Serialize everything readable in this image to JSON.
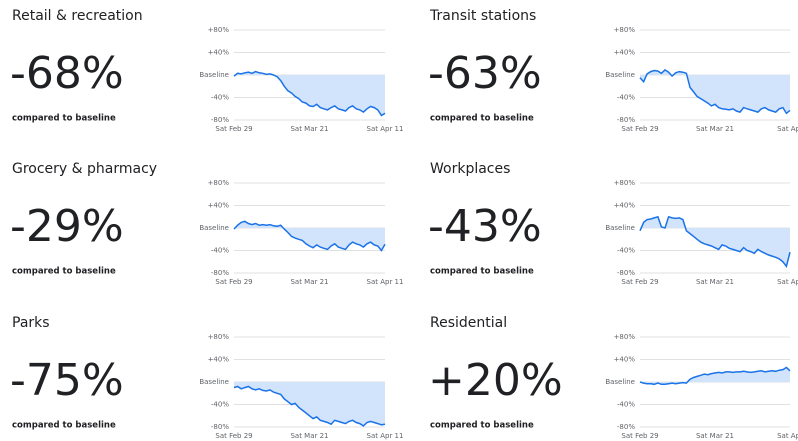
{
  "chart_data": [
    {
      "type": "line",
      "title": "Retail & recreation",
      "summary": "-68%",
      "subtitle": "compared to baseline",
      "color": "#1a73e8",
      "fill_color": "#d2e3fc",
      "grid": true,
      "categories": [
        "Sat Feb 29",
        null,
        null,
        null,
        null,
        null,
        null,
        null,
        null,
        null,
        null,
        null,
        null,
        null,
        null,
        null,
        null,
        null,
        null,
        null,
        null,
        "Sat Mar 21",
        null,
        null,
        null,
        null,
        null,
        null,
        null,
        null,
        null,
        null,
        null,
        null,
        null,
        null,
        null,
        null,
        null,
        null,
        null,
        null,
        "Sat Apr 11"
      ],
      "values": [
        -2,
        3,
        2,
        4,
        5,
        3,
        6,
        4,
        3,
        1,
        2,
        0,
        -3,
        -10,
        -20,
        -28,
        -32,
        -38,
        -42,
        -48,
        -50,
        -55,
        -56,
        -52,
        -58,
        -60,
        -62,
        -58,
        -55,
        -60,
        -62,
        -64,
        -58,
        -55,
        -60,
        -62,
        -66,
        -60,
        -56,
        -58,
        -62,
        -72,
        -68
      ],
      "ylim": [
        -80,
        80
      ],
      "yticks": [
        {
          "value": 80,
          "label": "+80%"
        },
        {
          "value": 40,
          "label": "+40%"
        },
        {
          "value": 0,
          "label": "Baseline"
        },
        {
          "value": -40,
          "label": "-40%"
        },
        {
          "value": -80,
          "label": "-80%"
        }
      ]
    },
    {
      "type": "line",
      "title": "Transit stations",
      "summary": "-63%",
      "subtitle": "compared to baseline",
      "color": "#1a73e8",
      "fill_color": "#d2e3fc",
      "grid": true,
      "categories": [
        "Sat Feb 29",
        null,
        null,
        null,
        null,
        null,
        null,
        null,
        null,
        null,
        null,
        null,
        null,
        null,
        null,
        null,
        null,
        null,
        null,
        null,
        null,
        "Sat Mar 21",
        null,
        null,
        null,
        null,
        null,
        null,
        null,
        null,
        null,
        null,
        null,
        null,
        null,
        null,
        null,
        null,
        null,
        null,
        null,
        null,
        "Sat Apr"
      ],
      "values": [
        -5,
        -12,
        2,
        6,
        8,
        7,
        3,
        9,
        5,
        -2,
        4,
        6,
        5,
        3,
        -22,
        -30,
        -38,
        -42,
        -46,
        -50,
        -55,
        -52,
        -58,
        -60,
        -61,
        -62,
        -60,
        -64,
        -66,
        -58,
        -60,
        -62,
        -64,
        -66,
        -60,
        -58,
        -62,
        -64,
        -66,
        -60,
        -58,
        -68,
        -63
      ],
      "ylim": [
        -80,
        80
      ],
      "yticks": [
        {
          "value": 80,
          "label": "+80%"
        },
        {
          "value": 40,
          "label": "+40%"
        },
        {
          "value": 0,
          "label": "Baseline"
        },
        {
          "value": -40,
          "label": "-40%"
        },
        {
          "value": -80,
          "label": "-80%"
        }
      ]
    },
    {
      "type": "line",
      "title": "Grocery & pharmacy",
      "summary": "-29%",
      "subtitle": "compared to baseline",
      "color": "#1a73e8",
      "fill_color": "#d2e3fc",
      "grid": true,
      "categories": [
        "Sat Feb 29",
        null,
        null,
        null,
        null,
        null,
        null,
        null,
        null,
        null,
        null,
        null,
        null,
        null,
        null,
        null,
        null,
        null,
        null,
        null,
        null,
        "Sat Mar 21",
        null,
        null,
        null,
        null,
        null,
        null,
        null,
        null,
        null,
        null,
        null,
        null,
        null,
        null,
        null,
        null,
        null,
        null,
        null,
        null,
        "Sat Apr 11"
      ],
      "values": [
        -2,
        5,
        10,
        12,
        8,
        6,
        8,
        5,
        6,
        5,
        6,
        4,
        3,
        5,
        -2,
        -8,
        -15,
        -18,
        -20,
        -22,
        -28,
        -32,
        -35,
        -30,
        -34,
        -36,
        -38,
        -32,
        -28,
        -34,
        -36,
        -38,
        -30,
        -25,
        -28,
        -30,
        -34,
        -28,
        -25,
        -30,
        -32,
        -40,
        -29
      ],
      "ylim": [
        -80,
        80
      ],
      "yticks": [
        {
          "value": 80,
          "label": "+80%"
        },
        {
          "value": 40,
          "label": "+40%"
        },
        {
          "value": 0,
          "label": "Baseline"
        },
        {
          "value": -40,
          "label": "-40%"
        },
        {
          "value": -80,
          "label": "-80%"
        }
      ]
    },
    {
      "type": "line",
      "title": "Workplaces",
      "summary": "-43%",
      "subtitle": "compared to baseline",
      "color": "#1a73e8",
      "fill_color": "#d2e3fc",
      "grid": true,
      "categories": [
        "Sat Feb 29",
        null,
        null,
        null,
        null,
        null,
        null,
        null,
        null,
        null,
        null,
        null,
        null,
        null,
        null,
        null,
        null,
        null,
        null,
        null,
        null,
        "Sat Mar 21",
        null,
        null,
        null,
        null,
        null,
        null,
        null,
        null,
        null,
        null,
        null,
        null,
        null,
        null,
        null,
        null,
        null,
        null,
        null,
        null,
        "Sat Apr"
      ],
      "values": [
        -5,
        10,
        15,
        16,
        18,
        20,
        2,
        0,
        20,
        18,
        17,
        18,
        15,
        -5,
        -10,
        -15,
        -20,
        -25,
        -28,
        -30,
        -32,
        -35,
        -38,
        -30,
        -32,
        -36,
        -38,
        -40,
        -42,
        -35,
        -40,
        -42,
        -45,
        -38,
        -42,
        -45,
        -48,
        -50,
        -52,
        -55,
        -60,
        -68,
        -43
      ],
      "ylim": [
        -80,
        80
      ],
      "yticks": [
        {
          "value": 80,
          "label": "+80%"
        },
        {
          "value": 40,
          "label": "+40%"
        },
        {
          "value": 0,
          "label": "Baseline"
        },
        {
          "value": -40,
          "label": "-40%"
        },
        {
          "value": -80,
          "label": "-80%"
        }
      ]
    },
    {
      "type": "line",
      "title": "Parks",
      "summary": "-75%",
      "subtitle": "compared to baseline",
      "color": "#1a73e8",
      "fill_color": "#d2e3fc",
      "grid": true,
      "categories": [
        "Sat Feb 29",
        null,
        null,
        null,
        null,
        null,
        null,
        null,
        null,
        null,
        null,
        null,
        null,
        null,
        null,
        null,
        null,
        null,
        null,
        null,
        null,
        "Sat Mar 21",
        null,
        null,
        null,
        null,
        null,
        null,
        null,
        null,
        null,
        null,
        null,
        null,
        null,
        null,
        null,
        null,
        null,
        null,
        null,
        null,
        "Sat Apr 11"
      ],
      "values": [
        -10,
        -8,
        -12,
        -10,
        -8,
        -12,
        -14,
        -12,
        -15,
        -16,
        -14,
        -18,
        -20,
        -22,
        -30,
        -35,
        -40,
        -38,
        -45,
        -50,
        -55,
        -60,
        -65,
        -62,
        -68,
        -70,
        -72,
        -75,
        -68,
        -70,
        -72,
        -74,
        -70,
        -68,
        -72,
        -74,
        -78,
        -72,
        -70,
        -72,
        -74,
        -76,
        -75
      ],
      "ylim": [
        -80,
        80
      ],
      "yticks": [
        {
          "value": 80,
          "label": "+80%"
        },
        {
          "value": 40,
          "label": "+40%"
        },
        {
          "value": 0,
          "label": "Baseline"
        },
        {
          "value": -40,
          "label": "-40%"
        },
        {
          "value": -80,
          "label": "-80%"
        }
      ]
    },
    {
      "type": "line",
      "title": "Residential",
      "summary": "+20%",
      "subtitle": "compared to baseline",
      "color": "#1a73e8",
      "fill_color": "#d2e3fc",
      "grid": true,
      "categories": [
        "Sat Feb 29",
        null,
        null,
        null,
        null,
        null,
        null,
        null,
        null,
        null,
        null,
        null,
        null,
        null,
        null,
        null,
        null,
        null,
        null,
        null,
        null,
        "Sat Mar 21",
        null,
        null,
        null,
        null,
        null,
        null,
        null,
        null,
        null,
        null,
        null,
        null,
        null,
        null,
        null,
        null,
        null,
        null,
        null,
        null,
        "Sat Apr"
      ],
      "values": [
        0,
        -2,
        -3,
        -3,
        -4,
        -2,
        -4,
        -4,
        -3,
        -2,
        -3,
        -2,
        -1,
        -2,
        5,
        8,
        10,
        12,
        14,
        13,
        15,
        16,
        17,
        16,
        18,
        18,
        17,
        18,
        18,
        19,
        18,
        17,
        18,
        19,
        20,
        18,
        19,
        20,
        19,
        21,
        22,
        26,
        20
      ],
      "ylim": [
        -80,
        80
      ],
      "yticks": [
        {
          "value": 80,
          "label": "+80%"
        },
        {
          "value": 40,
          "label": "+40%"
        },
        {
          "value": 0,
          "label": "Baseline"
        },
        {
          "value": -40,
          "label": "-40%"
        },
        {
          "value": -80,
          "label": "-80%"
        }
      ]
    }
  ]
}
